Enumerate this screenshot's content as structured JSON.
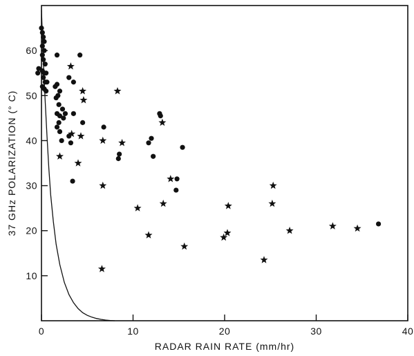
{
  "chart_data": {
    "type": "scatter",
    "title": "",
    "xlabel": "RADAR RAIN RATE (mm/hr)",
    "ylabel": "37 GHz POLARIZATION (° C)",
    "xlim": [
      0,
      40
    ],
    "ylim": [
      0,
      70
    ],
    "x_ticks": [
      0,
      10,
      20,
      30,
      40
    ],
    "y_ticks": [
      10,
      20,
      30,
      40,
      50,
      60
    ],
    "grid": false,
    "legend": "none",
    "series": [
      {
        "marker": "circle",
        "points": [
          [
            0,
            65
          ],
          [
            0.1,
            64
          ],
          [
            0.2,
            63
          ],
          [
            0.3,
            62
          ],
          [
            0.1,
            61
          ],
          [
            0.3,
            60
          ],
          [
            0.1,
            59
          ],
          [
            0.2,
            58
          ],
          [
            0.4,
            57
          ],
          [
            -0.3,
            56
          ],
          [
            0.1,
            55.5
          ],
          [
            0.3,
            55
          ],
          [
            0.5,
            55
          ],
          [
            -0.4,
            55
          ],
          [
            0.2,
            54
          ],
          [
            0.4,
            53
          ],
          [
            0.1,
            52
          ],
          [
            0.3,
            51.5
          ],
          [
            0.6,
            53
          ],
          [
            0.5,
            51
          ],
          [
            1.5,
            52
          ],
          [
            1.7,
            52.5
          ],
          [
            2.0,
            51
          ],
          [
            1.8,
            50
          ],
          [
            1.6,
            49.5
          ],
          [
            1.9,
            48
          ],
          [
            2.3,
            47
          ],
          [
            1.7,
            46
          ],
          [
            2.0,
            45.5
          ],
          [
            1.9,
            44
          ],
          [
            2.4,
            45
          ],
          [
            2.6,
            46
          ],
          [
            1.7,
            43
          ],
          [
            2.0,
            42
          ],
          [
            2.2,
            40
          ],
          [
            3.0,
            41
          ],
          [
            3.2,
            39.5
          ],
          [
            3.5,
            46
          ],
          [
            3.0,
            54
          ],
          [
            3.5,
            53
          ],
          [
            1.7,
            59
          ],
          [
            4.2,
            59
          ],
          [
            4.5,
            44
          ],
          [
            3.4,
            31
          ],
          [
            6.8,
            43
          ],
          [
            8.5,
            37
          ],
          [
            8.4,
            36
          ],
          [
            11.7,
            39.5
          ],
          [
            12.0,
            40.5
          ],
          [
            12.2,
            36.5
          ],
          [
            12.9,
            46
          ],
          [
            13.0,
            45.5
          ],
          [
            15.4,
            38.5
          ],
          [
            14.8,
            31.5
          ],
          [
            14.7,
            29
          ],
          [
            36.8,
            21.5
          ]
        ]
      },
      {
        "marker": "star",
        "points": [
          [
            2.0,
            36.5
          ],
          [
            3.2,
            56.5
          ],
          [
            3.3,
            41.5
          ],
          [
            4.0,
            35
          ],
          [
            4.3,
            41
          ],
          [
            4.5,
            51
          ],
          [
            4.6,
            49
          ],
          [
            6.7,
            40
          ],
          [
            6.7,
            30
          ],
          [
            6.6,
            11.5
          ],
          [
            8.3,
            51
          ],
          [
            8.8,
            39.5
          ],
          [
            10.5,
            25
          ],
          [
            11.7,
            19
          ],
          [
            13.2,
            44
          ],
          [
            13.3,
            26
          ],
          [
            14.1,
            31.5
          ],
          [
            15.6,
            16.5
          ],
          [
            19.9,
            18.5
          ],
          [
            20.3,
            19.5
          ],
          [
            20.4,
            25.5
          ],
          [
            24.3,
            13.5
          ],
          [
            25.2,
            26
          ],
          [
            25.3,
            30
          ],
          [
            27.1,
            20
          ],
          [
            31.8,
            21
          ],
          [
            34.5,
            20.5
          ]
        ]
      }
    ],
    "curve": {
      "points": [
        [
          0,
          69
        ],
        [
          0.2,
          58
        ],
        [
          0.4,
          49
        ],
        [
          0.6,
          41
        ],
        [
          0.8,
          34
        ],
        [
          1.0,
          28
        ],
        [
          1.3,
          22
        ],
        [
          1.6,
          17
        ],
        [
          2.0,
          12.5
        ],
        [
          2.5,
          8.5
        ],
        [
          3.0,
          5.8
        ],
        [
          3.5,
          4.0
        ],
        [
          4.0,
          2.7
        ],
        [
          4.5,
          1.8
        ],
        [
          5.0,
          1.2
        ],
        [
          5.5,
          0.8
        ],
        [
          6.0,
          0.5
        ],
        [
          6.5,
          0.3
        ],
        [
          7.0,
          0.15
        ],
        [
          7.5,
          0.05
        ],
        [
          8.0,
          0
        ]
      ]
    }
  }
}
